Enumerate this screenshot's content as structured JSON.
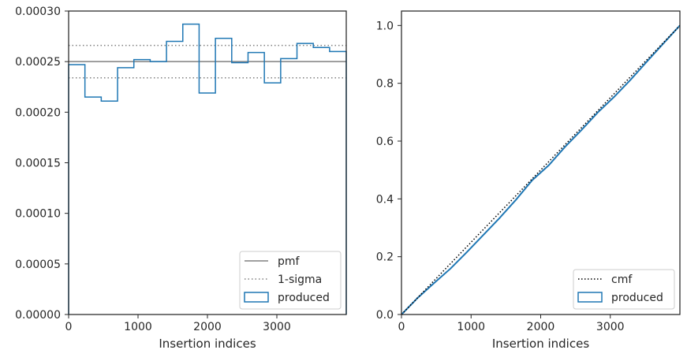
{
  "chart_data": [
    {
      "type": "histogram-step",
      "xlabel": "Insertion indices",
      "ylabel": "",
      "xlim": [
        0,
        4000
      ],
      "ylim": [
        0,
        0.0003
      ],
      "xticks": [
        0,
        1000,
        2000,
        3000
      ],
      "xtick_labels": [
        "0",
        "1000",
        "2000",
        "3000"
      ],
      "yticks": [
        0,
        5e-05,
        0.0001,
        0.00015,
        0.0002,
        0.00025,
        0.0003
      ],
      "ytick_labels": [
        "0.00000",
        "0.00005",
        "0.00010",
        "0.00015",
        "0.00020",
        "0.00025",
        "0.00030"
      ],
      "bin_edges": [
        0,
        235,
        470,
        705,
        940,
        1175,
        1410,
        1645,
        1880,
        2115,
        2350,
        2585,
        2820,
        3055,
        3290,
        3525,
        3760,
        4000
      ],
      "produced": [
        0.000247,
        0.000215,
        0.000211,
        0.000244,
        0.000252,
        0.00025,
        0.00027,
        0.000287,
        0.000219,
        0.000273,
        0.000249,
        0.000259,
        0.000229,
        0.000253,
        0.000268,
        0.000264,
        0.00026
      ],
      "pmf": 0.00025,
      "sigma_low": 0.000234,
      "sigma_high": 0.000266,
      "legend": [
        "pmf",
        "1-sigma",
        "produced"
      ],
      "legend_position": "lower-right",
      "colors": {
        "pmf": "#808080",
        "sigma": "#808080",
        "produced": "#1f77b4"
      }
    },
    {
      "type": "line",
      "xlabel": "Insertion indices",
      "ylabel": "",
      "xlim": [
        0,
        4000
      ],
      "ylim": [
        0,
        1.05
      ],
      "xticks": [
        0,
        1000,
        2000,
        3000
      ],
      "xtick_labels": [
        "0",
        "1000",
        "2000",
        "3000"
      ],
      "yticks": [
        0,
        0.2,
        0.4,
        0.6,
        0.8,
        1.0
      ],
      "ytick_labels": [
        "0.0",
        "0.2",
        "0.4",
        "0.6",
        "0.8",
        "1.0"
      ],
      "cmf": {
        "x": [
          0,
          4000
        ],
        "y": [
          0,
          1
        ]
      },
      "produced": {
        "x": [
          0,
          235,
          470,
          705,
          940,
          1175,
          1410,
          1645,
          1880,
          2115,
          2350,
          2585,
          2820,
          3055,
          3290,
          3525,
          3760,
          4000
        ],
        "y": [
          0,
          0.058,
          0.109,
          0.159,
          0.216,
          0.275,
          0.334,
          0.397,
          0.465,
          0.516,
          0.58,
          0.638,
          0.699,
          0.753,
          0.812,
          0.875,
          0.937,
          1.0
        ]
      },
      "legend": [
        "cmf",
        "produced"
      ],
      "legend_position": "lower-right",
      "colors": {
        "cmf": "#000000",
        "produced": "#1f77b4"
      }
    }
  ]
}
